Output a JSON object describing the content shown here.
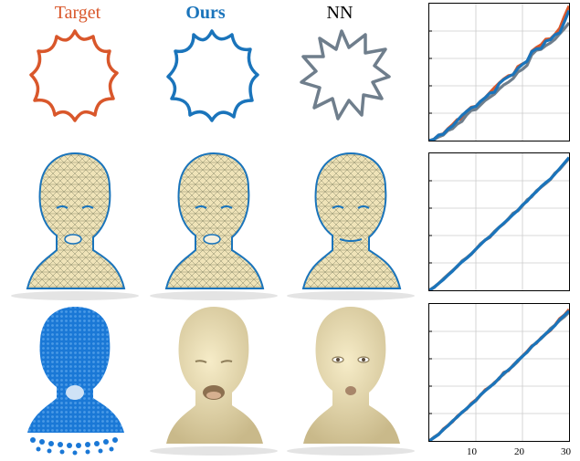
{
  "headers": {
    "target": "Target",
    "ours": "Ours",
    "nn": "NN"
  },
  "colors": {
    "target": "#d9572b",
    "ours": "#1a74bb",
    "nn": "#6f7e8c",
    "skin": "#efe3b8",
    "mesh_line": "#8a8a6a",
    "points": "#1a78d6"
  },
  "icons": {
    "row1": [
      "star-shape-icon",
      "star-shape-icon",
      "star-shape-icon"
    ],
    "row2": [
      "head-mesh-icon",
      "head-mesh-icon",
      "head-mesh-icon"
    ],
    "row3": [
      "head-pointcloud-icon",
      "head-render-icon",
      "head-render-icon"
    ]
  },
  "chart_data": [
    {
      "type": "line",
      "title": "",
      "xlabel": "",
      "ylabel": "",
      "xlim": [
        0,
        30
      ],
      "ylim": [
        0,
        30
      ],
      "grid": true,
      "xticks": [],
      "series": [
        {
          "x": [
            0,
            1,
            2,
            3,
            4,
            5,
            6,
            7,
            8,
            9,
            10,
            11,
            12,
            13,
            14,
            15,
            16,
            17,
            18,
            19,
            20,
            21,
            22,
            23,
            24,
            25,
            26,
            27,
            28,
            29,
            30
          ],
          "y": [
            0,
            0.3,
            1.2,
            1.5,
            2.6,
            3.5,
            4.6,
            4.7,
            6.4,
            7.3,
            7.5,
            8.6,
            9.4,
            10.5,
            11.6,
            12.6,
            13.5,
            14.2,
            14.4,
            16.2,
            16.8,
            17.3,
            19.6,
            20.4,
            21.0,
            22.2,
            22.3,
            23.3,
            24.6,
            27.2,
            29.5
          ]
        },
        {
          "x": [
            0,
            1,
            2,
            3,
            4,
            5,
            6,
            7,
            8,
            9,
            10,
            11,
            12,
            13,
            14,
            15,
            16,
            17,
            18,
            19,
            20,
            21,
            22,
            23,
            24,
            25,
            26,
            27,
            28,
            29,
            30
          ],
          "y": [
            0,
            0.3,
            1.2,
            1.4,
            2.5,
            3.2,
            4.4,
            5.5,
            6.4,
            7.2,
            7.5,
            8.6,
            9.4,
            10.4,
            10.6,
            12.5,
            13.4,
            14.0,
            14.5,
            15.8,
            16.7,
            17.4,
            19.5,
            20.1,
            20.2,
            21.8,
            22.1,
            23.2,
            23.6,
            26.0,
            28.5
          ]
        },
        {
          "x": [
            0,
            1,
            2,
            3,
            4,
            5,
            6,
            7,
            8,
            9,
            10,
            11,
            12,
            13,
            14,
            15,
            16,
            17,
            18,
            19,
            20,
            21,
            22,
            23,
            24,
            25,
            26,
            27,
            28,
            29,
            30
          ],
          "y": [
            0,
            0.2,
            0.8,
            1.2,
            2.2,
            2.6,
            3.6,
            4.2,
            5.6,
            6.6,
            6.8,
            7.8,
            8.8,
            9.5,
            10.2,
            11.3,
            12.2,
            12.8,
            13.6,
            15.0,
            15.6,
            16.5,
            18.8,
            19.8,
            20.0,
            20.8,
            21.4,
            22.2,
            23.4,
            24.5,
            25.8
          ]
        }
      ]
    },
    {
      "type": "line",
      "title": "",
      "xlabel": "",
      "ylabel": "",
      "xlim": [
        0,
        30
      ],
      "ylim": [
        0,
        30
      ],
      "grid": true,
      "xticks": [],
      "series": [
        {
          "x": [
            0,
            1,
            2,
            3,
            4,
            5,
            6,
            7,
            8,
            9,
            10,
            11,
            12,
            13,
            14,
            15,
            16,
            17,
            18,
            19,
            20,
            21,
            22,
            23,
            24,
            25,
            26,
            27,
            28,
            29,
            30
          ],
          "y": [
            0,
            0.6,
            1.5,
            2.4,
            3.4,
            4.3,
            5.2,
            6.3,
            7.1,
            7.9,
            9.0,
            10.1,
            11.0,
            11.6,
            12.8,
            13.8,
            14.6,
            15.6,
            16.8,
            17.5,
            18.6,
            19.6,
            20.6,
            21.7,
            22.6,
            23.5,
            24.3,
            25.6,
            26.6,
            27.8,
            29.0
          ]
        },
        {
          "x": [
            0,
            1,
            2,
            3,
            4,
            5,
            6,
            7,
            8,
            9,
            10,
            11,
            12,
            13,
            14,
            15,
            16,
            17,
            18,
            19,
            20,
            21,
            22,
            23,
            24,
            25,
            26,
            27,
            28,
            29,
            30
          ],
          "y": [
            0,
            0.6,
            1.5,
            2.3,
            3.3,
            4.2,
            5.3,
            6.2,
            7.0,
            7.9,
            9.0,
            10.0,
            11.0,
            11.7,
            12.7,
            13.8,
            14.7,
            15.6,
            16.6,
            17.5,
            18.7,
            19.5,
            20.7,
            21.6,
            22.7,
            23.6,
            24.4,
            25.5,
            26.7,
            27.9,
            29.1
          ]
        },
        {
          "x": [
            0,
            1,
            2,
            3,
            4,
            5,
            6,
            7,
            8,
            9,
            10,
            11,
            12,
            13,
            14,
            15,
            16,
            17,
            18,
            19,
            20,
            21,
            22,
            23,
            24,
            25,
            26,
            27,
            28,
            29,
            30
          ],
          "y": [
            0,
            0.7,
            1.5,
            2.5,
            3.4,
            4.3,
            5.2,
            6.4,
            7.1,
            8.0,
            9.0,
            10.2,
            11.0,
            11.8,
            12.9,
            13.8,
            14.6,
            15.7,
            16.9,
            17.4,
            18.5,
            19.8,
            20.5,
            21.8,
            22.6,
            23.4,
            24.3,
            25.7,
            26.5,
            27.7,
            28.9
          ]
        }
      ]
    },
    {
      "type": "line",
      "title": "",
      "xlabel": "",
      "ylabel": "",
      "xlim": [
        0,
        30
      ],
      "ylim": [
        0,
        30
      ],
      "grid": true,
      "xticks": [
        "10",
        "20",
        "30"
      ],
      "series": [
        {
          "x": [
            0,
            1,
            2,
            3,
            4,
            5,
            6,
            7,
            8,
            9,
            10,
            11,
            12,
            13,
            14,
            15,
            16,
            17,
            18,
            19,
            20,
            21,
            22,
            23,
            24,
            25,
            26,
            27,
            28,
            29,
            30
          ],
          "y": [
            0,
            0.8,
            1.4,
            2.6,
            3.4,
            4.2,
            5.4,
            6.2,
            7.0,
            8.2,
            9.0,
            10.0,
            11.2,
            11.8,
            12.8,
            13.6,
            15.0,
            15.4,
            16.6,
            17.6,
            18.6,
            19.6,
            20.8,
            21.4,
            22.6,
            23.4,
            24.2,
            25.4,
            26.8,
            27.6,
            28.8
          ]
        },
        {
          "x": [
            0,
            1,
            2,
            3,
            4,
            5,
            6,
            7,
            8,
            9,
            10,
            11,
            12,
            13,
            14,
            15,
            16,
            17,
            18,
            19,
            20,
            21,
            22,
            23,
            24,
            25,
            26,
            27,
            28,
            29,
            30
          ],
          "y": [
            0,
            0.7,
            1.4,
            2.5,
            3.3,
            4.3,
            5.3,
            6.2,
            7.1,
            8.0,
            8.9,
            10.1,
            11.0,
            11.8,
            12.7,
            13.7,
            14.9,
            15.5,
            16.5,
            17.6,
            18.5,
            19.5,
            20.7,
            21.5,
            22.5,
            23.5,
            24.3,
            25.3,
            26.6,
            27.5,
            28.5
          ]
        },
        {
          "x": [
            0,
            1,
            2,
            3,
            4,
            5,
            6,
            7,
            8,
            9,
            10,
            11,
            12,
            13,
            14,
            15,
            16,
            17,
            18,
            19,
            20,
            21,
            22,
            23,
            24,
            25,
            26,
            27,
            28,
            29,
            30
          ],
          "y": [
            0,
            0.8,
            1.5,
            2.4,
            3.4,
            4.4,
            5.2,
            6.3,
            7.0,
            8.1,
            8.8,
            10.0,
            11.0,
            11.9,
            12.6,
            13.8,
            14.6,
            15.6,
            16.4,
            17.4,
            18.6,
            19.4,
            20.6,
            21.6,
            22.4,
            23.4,
            24.6,
            25.4,
            26.4,
            27.2,
            28.2
          ]
        }
      ]
    }
  ]
}
